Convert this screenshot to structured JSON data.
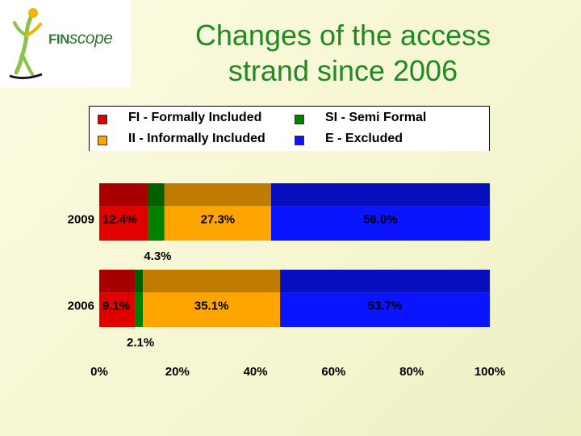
{
  "title": "Changes of the access strand since 2006",
  "logo": {
    "fin": "FIN",
    "scope": "scope"
  },
  "chart_data": {
    "type": "bar",
    "orientation": "horizontal",
    "stacked": true,
    "categories": [
      "2009",
      "2006"
    ],
    "series": [
      {
        "name": "FI - Formally Included",
        "color": "#e00000",
        "values": [
          12.4,
          9.1
        ],
        "labels": [
          "12.4%",
          "9.1%"
        ]
      },
      {
        "name": "SI - Semi Formal",
        "color": "#008000",
        "values": [
          4.3,
          2.1
        ],
        "labels": [
          "4.3%",
          "2.1%"
        ]
      },
      {
        "name": "II - Informally Included",
        "color": "#ffa500",
        "values": [
          27.3,
          35.1
        ],
        "labels": [
          "27.3%",
          "35.1%"
        ]
      },
      {
        "name": "E - Excluded",
        "color": "#0a14ff",
        "values": [
          56.0,
          53.7
        ],
        "labels": [
          "56.0%",
          "53.7%"
        ]
      }
    ],
    "xlim": [
      0,
      100
    ],
    "x_ticks": [
      "0%",
      "20%",
      "40%",
      "60%",
      "80%",
      "100%"
    ],
    "legend_position": "top",
    "grid": false
  }
}
